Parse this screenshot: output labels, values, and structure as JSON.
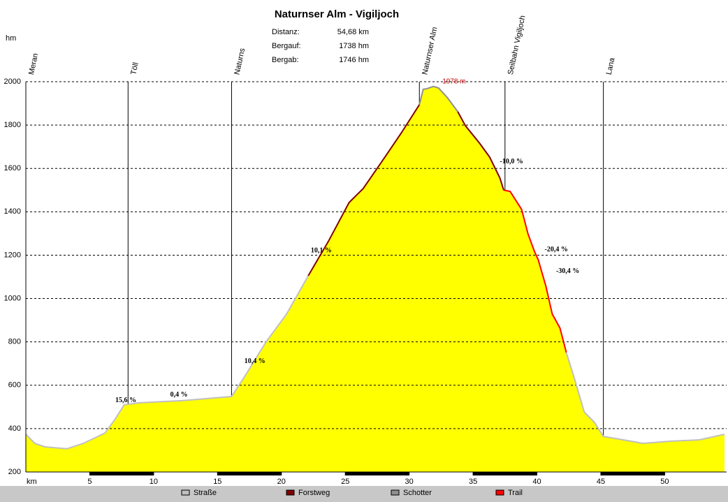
{
  "chart_data": {
    "type": "area",
    "title": "Naturnser Alm - Vigiljoch",
    "info": [
      {
        "label": "Distanz:",
        "value": "54,68 km"
      },
      {
        "label": "Bergauf:",
        "value": "1738 hm"
      },
      {
        "label": "Bergab:",
        "value": "1746 hm"
      }
    ],
    "y_label": "hm",
    "x_label": "km",
    "fill_color": "#ffff00",
    "x": [
      0,
      0.7,
      1.5,
      3.2,
      4.5,
      6.2,
      7.0,
      7.7,
      8.9,
      12.2,
      16.1,
      17.1,
      18.8,
      20.4,
      22.1,
      23.7,
      25.3,
      26.4,
      28.1,
      29.4,
      30.8,
      31.1,
      31.4,
      31.9,
      32.3,
      33.0,
      33.8,
      34.4,
      35.5,
      36.3,
      37.1,
      37.4,
      37.9,
      38.8,
      39.3,
      39.8,
      40.1,
      40.7,
      41.2,
      41.8,
      42.3,
      42.9,
      43.7,
      44.5,
      45.2,
      46.1,
      48.3,
      50.5,
      52.7,
      54.68
    ],
    "series": [
      {
        "name": "Straße",
        "color": "#c0c0c0",
        "values": [
          374,
          332,
          316,
          307,
          332,
          380,
          445,
          510,
          519,
          529,
          548,
          638,
          800,
          928,
          1105,
          null,
          null,
          null,
          null,
          null,
          null,
          null,
          null,
          null,
          null,
          null,
          null,
          null,
          null,
          null,
          null,
          null,
          null,
          null,
          null,
          null,
          null,
          null,
          null,
          null,
          751,
          638,
          477,
          429,
          364,
          355,
          332,
          342,
          348,
          374
        ]
      },
      {
        "name": "Forstweg",
        "color": "#800000",
        "values": [
          null,
          null,
          null,
          null,
          null,
          null,
          null,
          null,
          null,
          null,
          null,
          null,
          null,
          null,
          1105,
          1266,
          1443,
          1507,
          1652,
          1765,
          1894,
          null,
          null,
          null,
          null,
          null,
          1862,
          1797,
          1717,
          1652,
          1556,
          1500,
          null,
          null,
          null,
          null,
          null,
          null,
          null,
          null,
          null,
          null,
          null,
          null,
          null,
          null,
          null,
          null,
          null,
          null
        ]
      },
      {
        "name": "Schotter",
        "color": "#909090",
        "values": [
          null,
          null,
          null,
          null,
          null,
          null,
          null,
          null,
          null,
          null,
          null,
          null,
          null,
          null,
          null,
          null,
          null,
          null,
          null,
          null,
          1894,
          1965,
          1968,
          1978,
          1971,
          1926,
          1862,
          null,
          null,
          null,
          null,
          null,
          null,
          null,
          null,
          null,
          null,
          null,
          null,
          null,
          null,
          null,
          null,
          null,
          null,
          null,
          null,
          null,
          null,
          null
        ]
      },
      {
        "name": "Trail",
        "color": "#ff0000",
        "values": [
          null,
          null,
          null,
          null,
          null,
          null,
          null,
          null,
          null,
          null,
          null,
          null,
          null,
          null,
          null,
          null,
          null,
          null,
          null,
          null,
          null,
          null,
          null,
          null,
          null,
          null,
          null,
          null,
          null,
          null,
          null,
          1500,
          1494,
          1411,
          1298,
          1218,
          1179,
          1057,
          928,
          864,
          751,
          null,
          null,
          null,
          null,
          null,
          null,
          null,
          null,
          null
        ]
      }
    ],
    "waypoints": [
      {
        "name": "Meran",
        "x": 0
      },
      {
        "name": "Töll",
        "x": 8.0
      },
      {
        "name": "Naturns",
        "x": 16.1
      },
      {
        "name": "Naturnser Alm",
        "x": 30.8
      },
      {
        "name": "Seilbahn Vigiljoch",
        "x": 37.5
      },
      {
        "name": "Lana",
        "x": 45.2
      }
    ],
    "annotations": [
      {
        "text": "1978 m",
        "x": 32.6,
        "y": 2000,
        "color": "#c00000"
      },
      {
        "text": "15,6 %",
        "x": 7.0,
        "y": 530
      },
      {
        "text": "0,4 %",
        "x": 11.3,
        "y": 555
      },
      {
        "text": "10,4 %",
        "x": 17.1,
        "y": 710
      },
      {
        "text": "10,1 %",
        "x": 22.3,
        "y": 1220
      },
      {
        "text": "-10,0 %",
        "x": 37.1,
        "y": 1630
      },
      {
        "text": "-20,4 %",
        "x": 40.6,
        "y": 1225
      },
      {
        "text": "-30,4 %",
        "x": 41.5,
        "y": 1125
      }
    ],
    "xlim": [
      0,
      54.68
    ],
    "xticks": [
      5,
      10,
      15,
      20,
      25,
      30,
      35,
      40,
      45,
      50
    ],
    "ylim": [
      200,
      2000
    ],
    "yticks": [
      200,
      400,
      600,
      800,
      1000,
      1200,
      1400,
      1600,
      1800,
      2000
    ],
    "grid": true
  }
}
